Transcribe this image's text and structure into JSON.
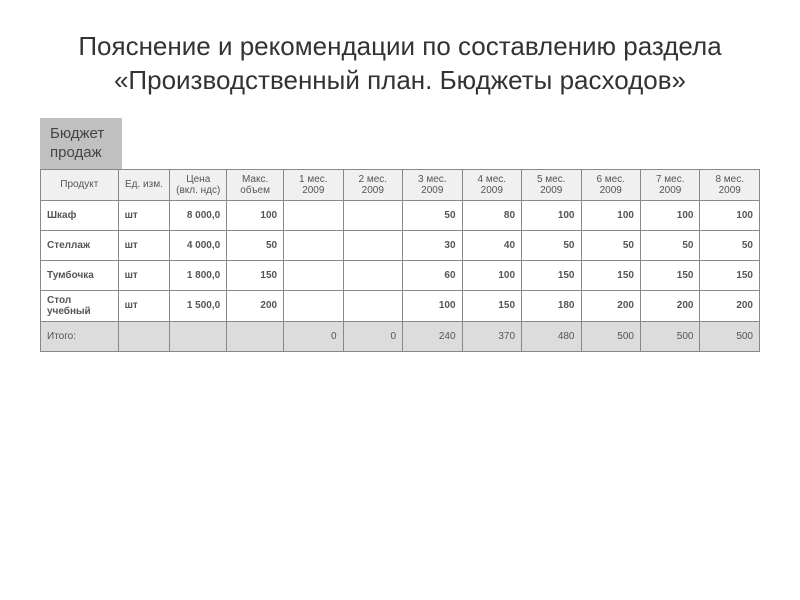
{
  "title": "Пояснение и рекомендации по составлению раздела «Производственный план. Бюджеты расходов»",
  "subtitle": "Бюджет\nпродаж",
  "table": {
    "type": "table",
    "background_color": "#ffffff",
    "header_background": "#f0f0f0",
    "totals_background": "#dcdcdc",
    "border_color": "#888888",
    "text_color": "#555555",
    "font_size": 10,
    "columns": [
      {
        "key": "product",
        "label": "Продукт",
        "align": "left",
        "width": 60
      },
      {
        "key": "unit",
        "label": "Ед. изм.",
        "align": "left",
        "width": 40
      },
      {
        "key": "price",
        "label": "Цена (вкл. ндс)",
        "align": "right",
        "width": 44
      },
      {
        "key": "max",
        "label": "Макс. объем",
        "align": "right",
        "width": 44
      },
      {
        "key": "m1",
        "label": "1 мес. 2009",
        "align": "right",
        "width": 46
      },
      {
        "key": "m2",
        "label": "2 мес. 2009",
        "align": "right",
        "width": 46
      },
      {
        "key": "m3",
        "label": "3 мес. 2009",
        "align": "right",
        "width": 46
      },
      {
        "key": "m4",
        "label": "4 мес. 2009",
        "align": "right",
        "width": 46
      },
      {
        "key": "m5",
        "label": "5 мес. 2009",
        "align": "right",
        "width": 46
      },
      {
        "key": "m6",
        "label": "6 мес. 2009",
        "align": "right",
        "width": 46
      },
      {
        "key": "m7",
        "label": "7 мес. 2009",
        "align": "right",
        "width": 46
      },
      {
        "key": "m8",
        "label": "8 мес. 2009",
        "align": "right",
        "width": 46
      }
    ],
    "rows": [
      {
        "product": "Шкаф",
        "unit": "шт",
        "price": "8 000,0",
        "max": "100",
        "m1": "",
        "m2": "",
        "m3": "50",
        "m4": "80",
        "m5": "100",
        "m6": "100",
        "m7": "100",
        "m8": "100"
      },
      {
        "product": "Стеллаж",
        "unit": "шт",
        "price": "4 000,0",
        "max": "50",
        "m1": "",
        "m2": "",
        "m3": "30",
        "m4": "40",
        "m5": "50",
        "m6": "50",
        "m7": "50",
        "m8": "50"
      },
      {
        "product": "Тумбочка",
        "unit": "шт",
        "price": "1 800,0",
        "max": "150",
        "m1": "",
        "m2": "",
        "m3": "60",
        "m4": "100",
        "m5": "150",
        "m6": "150",
        "m7": "150",
        "m8": "150"
      },
      {
        "product": "Стол учебный",
        "unit": "шт",
        "price": "1 500,0",
        "max": "200",
        "m1": "",
        "m2": "",
        "m3": "100",
        "m4": "150",
        "m5": "180",
        "m6": "200",
        "m7": "200",
        "m8": "200"
      }
    ],
    "totals": {
      "product": "Итого:",
      "unit": "",
      "price": "",
      "max": "",
      "m1": "0",
      "m2": "0",
      "m3": "240",
      "m4": "370",
      "m5": "480",
      "m6": "500",
      "m7": "500",
      "m8": "500"
    }
  }
}
